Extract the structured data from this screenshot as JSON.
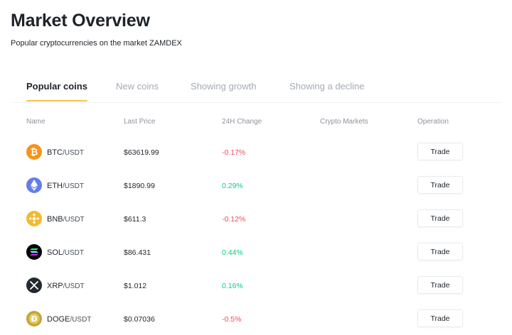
{
  "header": {
    "title": "Market Overview",
    "subtitle": "Popular cryptocurrencies on the market ZAMDEX"
  },
  "tabs": [
    {
      "label": "Popular coins",
      "active": true
    },
    {
      "label": "New coins",
      "active": false
    },
    {
      "label": "Showing growth",
      "active": false
    },
    {
      "label": "Showing a decline",
      "active": false
    }
  ],
  "columns": {
    "name": "Name",
    "last_price": "Last Price",
    "change": "24H Change",
    "markets": "Crypto Markets",
    "operation": "Operation"
  },
  "colors": {
    "accent": "#f0c642",
    "negative": "#f6465d",
    "positive": "#0ecb81"
  },
  "rows": [
    {
      "icon": "bitcoin-icon",
      "icon_color": "#f7931a",
      "base": "BTC",
      "quote": "/USDT",
      "price": "$63619.99",
      "change": "-0.17%",
      "direction": "neg",
      "action": "Trade"
    },
    {
      "icon": "ethereum-icon",
      "icon_color": "#627eea",
      "base": "ETH",
      "quote": "/USDT",
      "price": "$1890.99",
      "change": "0.29%",
      "direction": "pos",
      "action": "Trade"
    },
    {
      "icon": "bnb-icon",
      "icon_color": "#f3ba2f",
      "base": "BNB",
      "quote": "/USDT",
      "price": "$611.3",
      "change": "-0.12%",
      "direction": "neg",
      "action": "Trade"
    },
    {
      "icon": "solana-icon",
      "icon_color": "#000000",
      "base": "SOL",
      "quote": "/USDT",
      "price": "$86.431",
      "change": "0.44%",
      "direction": "pos",
      "action": "Trade"
    },
    {
      "icon": "xrp-icon",
      "icon_color": "#23292f",
      "base": "XRP",
      "quote": "/USDT",
      "price": "$1.012",
      "change": "0.16%",
      "direction": "pos",
      "action": "Trade"
    },
    {
      "icon": "dogecoin-icon",
      "icon_color": "#c2a633",
      "base": "DOGE",
      "quote": "/USDT",
      "price": "$0.07036",
      "change": "-0.5%",
      "direction": "neg",
      "action": "Trade"
    }
  ]
}
